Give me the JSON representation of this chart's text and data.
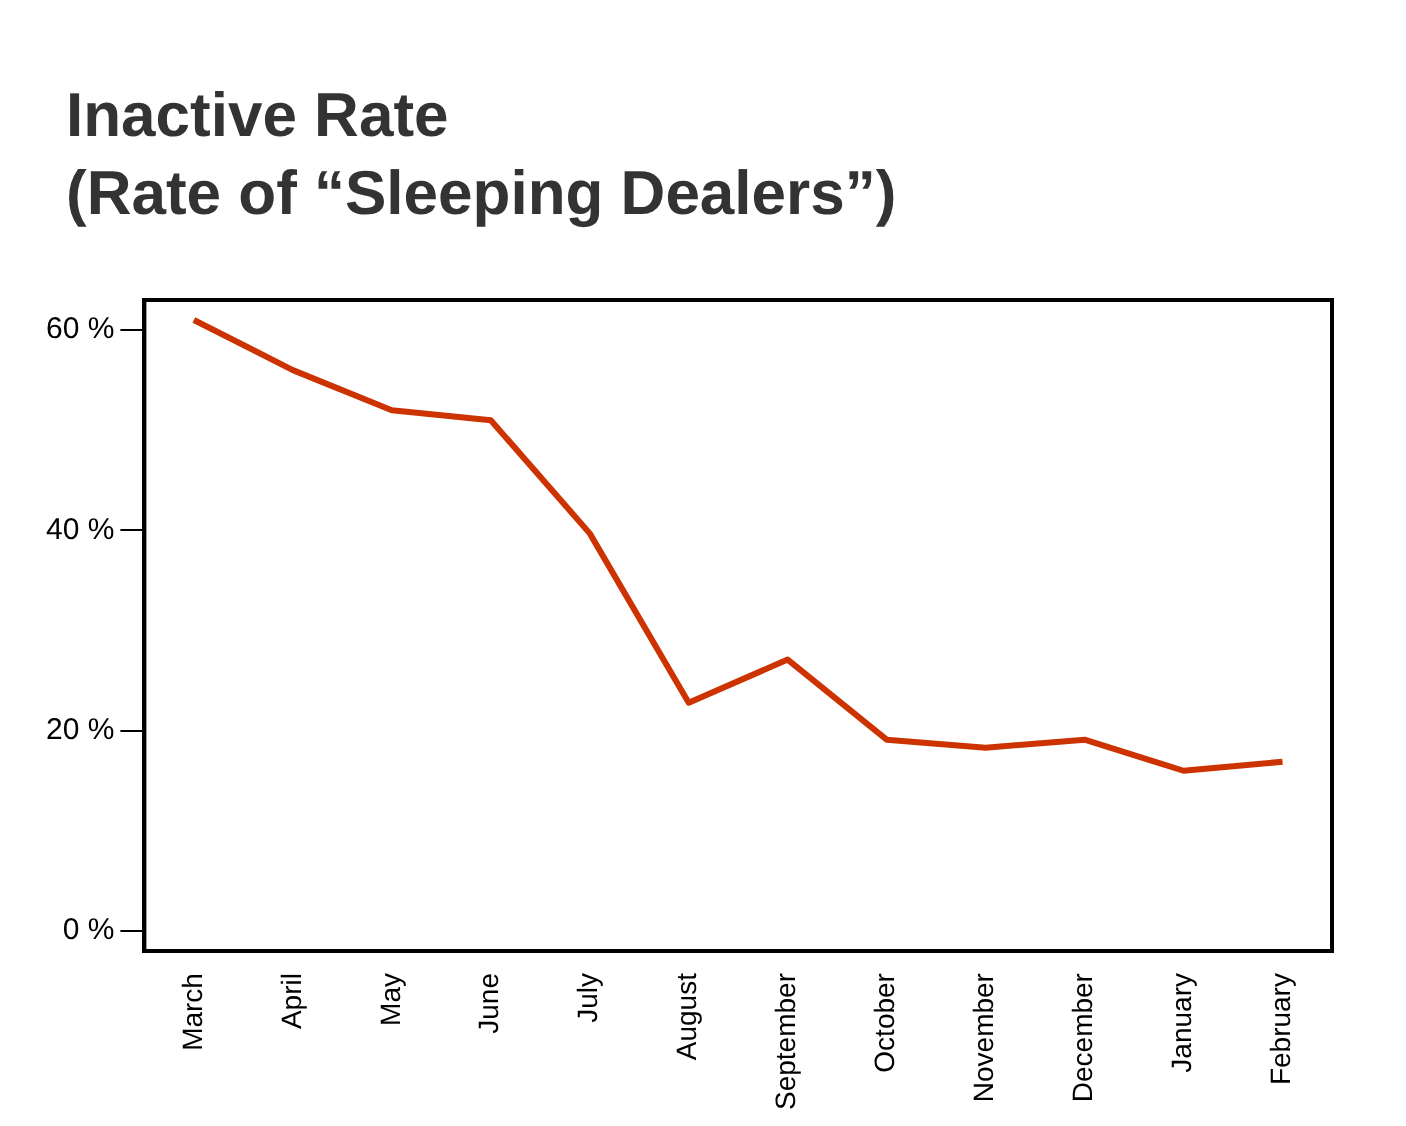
{
  "chart_data": {
    "type": "line",
    "title": "Inactive Rate\n(Rate of “Sleeping Dealers”)",
    "categories": [
      "March",
      "April",
      "May",
      "June",
      "July",
      "August",
      "September",
      "October",
      "November",
      "December",
      "January",
      "February"
    ],
    "series": [
      {
        "color": "#cc3300",
        "values": [
          61,
          56,
          52,
          51,
          39.7,
          22.8,
          27.1,
          19.1,
          18.3,
          19.1,
          16,
          16.9
        ]
      }
    ],
    "ylim": [
      -2,
      63
    ],
    "yticks": [
      {
        "value": 0,
        "label": "0 %"
      },
      {
        "value": 20,
        "label": "20 %"
      },
      {
        "value": 40,
        "label": "40 %"
      },
      {
        "value": 60,
        "label": "60 %"
      }
    ],
    "grid": false,
    "legend": false,
    "marker": "none",
    "line_style": "solid"
  }
}
